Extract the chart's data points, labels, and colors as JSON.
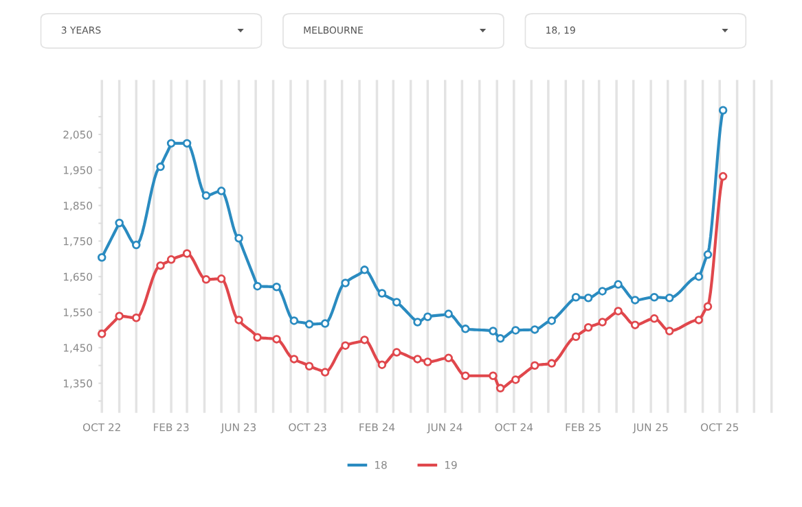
{
  "chart_data": {
    "type": "line",
    "annotations": [
      "3 YEARS",
      "MELBOURNE",
      "18, 19"
    ],
    "x": [
      "2022-10-01",
      "2022-11-01",
      "2022-12-01",
      "2023-01-13",
      "2023-02-01",
      "2023-03-01",
      "2023-04-04",
      "2023-05-01",
      "2023-06-01",
      "2023-07-04",
      "2023-08-07",
      "2023-09-07",
      "2023-10-04",
      "2023-11-01",
      "2023-12-07",
      "2024-01-10",
      "2024-02-10",
      "2024-03-07",
      "2024-04-13",
      "2024-05-01",
      "2024-06-07",
      "2024-07-07",
      "2024-08-25",
      "2024-09-07",
      "2024-10-04",
      "2024-11-07",
      "2024-12-07",
      "2025-01-19",
      "2025-02-10",
      "2025-03-07",
      "2025-04-04",
      "2025-05-04",
      "2025-06-07",
      "2025-07-04",
      "2025-08-25",
      "2025-09-10",
      "2025-10-07"
    ],
    "series": [
      {
        "name": "18",
        "color": "#2a8bc0",
        "values": [
          1704,
          1801,
          1739,
          1959,
          2025,
          2025,
          1878,
          1891,
          1758,
          1623,
          1621,
          1526,
          1516,
          1518,
          1632,
          1669,
          1603,
          1578,
          1522,
          1537,
          1545,
          1503,
          1497,
          1476,
          1499,
          1501,
          1526,
          1592,
          1590,
          1609,
          1628,
          1584,
          1592,
          1590,
          1650,
          1712,
          2118
        ]
      },
      {
        "name": "19",
        "color": "#e0474c",
        "values": [
          1489,
          1539,
          1534,
          1681,
          1698,
          1715,
          1642,
          1644,
          1528,
          1479,
          1474,
          1418,
          1398,
          1381,
          1456,
          1472,
          1402,
          1437,
          1418,
          1410,
          1421,
          1371,
          1371,
          1336,
          1360,
          1400,
          1406,
          1481,
          1507,
          1522,
          1553,
          1514,
          1532,
          1497,
          1528,
          1566,
          1932
        ]
      }
    ],
    "xlim": [
      "2022-10-01",
      "2026-01-01"
    ],
    "xticks": [
      {
        "value": "2022-10-01",
        "label": "OCT 22"
      },
      {
        "value": "2022-11-01",
        "label": null
      },
      {
        "value": "2022-12-01",
        "label": null
      },
      {
        "value": "2023-01-01",
        "label": null
      },
      {
        "value": "2023-02-01",
        "label": "FEB 23"
      },
      {
        "value": "2023-03-01",
        "label": null
      },
      {
        "value": "2023-04-01",
        "label": null
      },
      {
        "value": "2023-05-01",
        "label": null
      },
      {
        "value": "2023-06-01",
        "label": "JUN 23"
      },
      {
        "value": "2023-07-01",
        "label": null
      },
      {
        "value": "2023-08-01",
        "label": null
      },
      {
        "value": "2023-09-01",
        "label": null
      },
      {
        "value": "2023-10-01",
        "label": "OCT 23"
      },
      {
        "value": "2023-11-01",
        "label": null
      },
      {
        "value": "2023-12-01",
        "label": null
      },
      {
        "value": "2024-01-01",
        "label": null
      },
      {
        "value": "2024-02-01",
        "label": "FEB 24"
      },
      {
        "value": "2024-03-01",
        "label": null
      },
      {
        "value": "2024-04-01",
        "label": null
      },
      {
        "value": "2024-05-01",
        "label": null
      },
      {
        "value": "2024-06-01",
        "label": "JUN 24"
      },
      {
        "value": "2024-07-01",
        "label": null
      },
      {
        "value": "2024-08-01",
        "label": null
      },
      {
        "value": "2024-09-01",
        "label": null
      },
      {
        "value": "2024-10-01",
        "label": "OCT 24"
      },
      {
        "value": "2024-11-01",
        "label": null
      },
      {
        "value": "2024-12-01",
        "label": null
      },
      {
        "value": "2025-01-01",
        "label": null
      },
      {
        "value": "2025-02-01",
        "label": "FEB 25"
      },
      {
        "value": "2025-03-01",
        "label": null
      },
      {
        "value": "2025-04-01",
        "label": null
      },
      {
        "value": "2025-05-01",
        "label": null
      },
      {
        "value": "2025-06-01",
        "label": "JUN 25"
      },
      {
        "value": "2025-07-01",
        "label": null
      },
      {
        "value": "2025-08-01",
        "label": null
      },
      {
        "value": "2025-09-01",
        "label": null
      },
      {
        "value": "2025-10-01",
        "label": "OCT 25"
      },
      {
        "value": "2025-11-01",
        "label": null
      },
      {
        "value": "2025-12-01",
        "label": null
      },
      {
        "value": "2026-01-01",
        "label": null
      }
    ],
    "ylim": [
      1270,
      2200
    ],
    "yticks": [
      {
        "value": 1300,
        "label": null
      },
      {
        "value": 1350,
        "label": "1,350"
      },
      {
        "value": 1400,
        "label": null
      },
      {
        "value": 1450,
        "label": "1,450"
      },
      {
        "value": 1500,
        "label": null
      },
      {
        "value": 1550,
        "label": "1,550"
      },
      {
        "value": 1600,
        "label": null
      },
      {
        "value": 1650,
        "label": "1,650"
      },
      {
        "value": 1700,
        "label": null
      },
      {
        "value": 1750,
        "label": "1,750"
      },
      {
        "value": 1800,
        "label": null
      },
      {
        "value": 1850,
        "label": "1,850"
      },
      {
        "value": 1900,
        "label": null
      },
      {
        "value": 1950,
        "label": "1,950"
      },
      {
        "value": 2000,
        "label": null
      },
      {
        "value": 2050,
        "label": "2,050"
      },
      {
        "value": 2100,
        "label": null
      }
    ],
    "grid": "x",
    "legend": "bottom",
    "marker": "circle",
    "line_style": "solid"
  }
}
